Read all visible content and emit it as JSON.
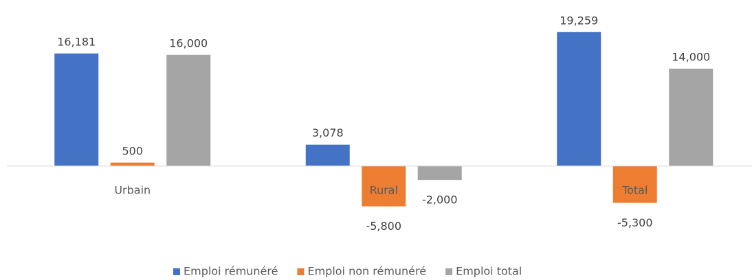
{
  "chart_data": {
    "type": "bar",
    "categories": [
      "Urbain",
      "Rural",
      "Total"
    ],
    "series": [
      {
        "name": "Emploi rémunéré",
        "color": "#4472c4",
        "values": [
          16181,
          3078,
          19259
        ],
        "value_labels": [
          "16,181",
          "3,078",
          "19,259"
        ]
      },
      {
        "name": "Emploi non rémunéré",
        "color": "#ed7d31",
        "values": [
          500,
          -5800,
          -5300
        ],
        "value_labels": [
          "500",
          "-5,800",
          "-5,300"
        ]
      },
      {
        "name": "Emploi total",
        "color": "#a5a5a5",
        "values": [
          16000,
          -2000,
          14000
        ],
        "value_labels": [
          "16,000",
          "-2,000",
          "14,000"
        ]
      }
    ],
    "ylim": [
      -8000,
      22000
    ],
    "legend": "bottom"
  }
}
